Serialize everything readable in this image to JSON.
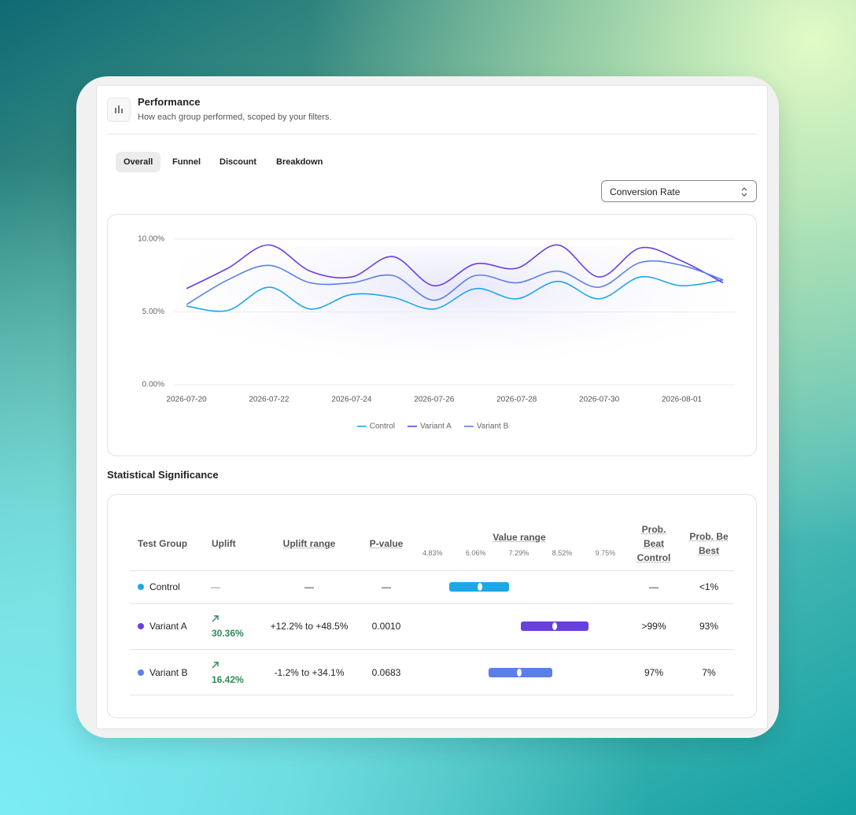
{
  "header": {
    "title": "Performance",
    "subtitle": "How each group performed, scoped by your filters."
  },
  "tabs": [
    "Overall",
    "Funnel",
    "Discount",
    "Breakdown"
  ],
  "active_tab": 0,
  "metric_select": "Conversion Rate",
  "chart_data": {
    "type": "line",
    "x": [
      "2026-07-20",
      "2026-07-21",
      "2026-07-22",
      "2026-07-23",
      "2026-07-24",
      "2026-07-25",
      "2026-07-26",
      "2026-07-27",
      "2026-07-28",
      "2026-07-29",
      "2026-07-30",
      "2026-07-31",
      "2026-08-01",
      "2026-08-02"
    ],
    "series": [
      {
        "name": "Control",
        "color": "#1ea7e8",
        "values": [
          5.4,
          5.1,
          6.7,
          5.2,
          6.2,
          6.0,
          5.2,
          6.6,
          5.9,
          7.1,
          5.9,
          7.4,
          6.8,
          7.2
        ]
      },
      {
        "name": "Variant A",
        "color": "#6a3fe0",
        "values": [
          6.6,
          8.0,
          9.6,
          7.8,
          7.4,
          8.8,
          6.8,
          8.3,
          8.0,
          9.6,
          7.4,
          9.4,
          8.5,
          7.0
        ]
      },
      {
        "name": "Variant B",
        "color": "#5b7fe8",
        "values": [
          5.5,
          7.2,
          8.2,
          7.0,
          7.0,
          7.5,
          5.8,
          7.5,
          7.0,
          7.8,
          6.7,
          8.4,
          8.2,
          7.2
        ]
      }
    ],
    "ylim": [
      0,
      10
    ],
    "yticks": [
      {
        "value": 0,
        "label": "0.00%"
      },
      {
        "value": 5,
        "label": "5.00%"
      },
      {
        "value": 10,
        "label": "10.00%"
      }
    ],
    "grid": true,
    "legend": "bottom"
  },
  "significance": {
    "title": "Statistical Significance",
    "columns": [
      "Test Group",
      "Uplift",
      "Uplift range",
      "P-value",
      "Value range",
      "Prob. Beat Control",
      "Prob. Be Best"
    ],
    "value_range_lim": [
      4.5,
      10.1
    ],
    "value_range_ticks": [
      {
        "value": 4.83,
        "label": "4.83%"
      },
      {
        "value": 6.06,
        "label": "6.06%"
      },
      {
        "value": 7.29,
        "label": "7.29%"
      },
      {
        "value": 8.52,
        "label": "8.52%"
      },
      {
        "value": 9.75,
        "label": "9.75%"
      }
    ],
    "rows": [
      {
        "group": "Control",
        "color": "#1ea7e8",
        "uplift": "—",
        "uplift_direction": "none",
        "uplift_range": "—",
        "p_value": "—",
        "range_low": 5.3,
        "range_high": 7.02,
        "mean": 6.17,
        "prob_beat_control": "—",
        "prob_best": "<1%"
      },
      {
        "group": "Variant A",
        "color": "#6a3fe0",
        "uplift": "30.36%",
        "uplift_direction": "up",
        "uplift_range": "+12.2% to +48.5%",
        "p_value": "0.0010",
        "range_low": 7.35,
        "range_high": 9.27,
        "mean": 8.31,
        "prob_beat_control": ">99%",
        "prob_best": "93%"
      },
      {
        "group": "Variant B",
        "color": "#5b7fe8",
        "uplift": "16.42%",
        "uplift_direction": "up",
        "uplift_range": "-1.2% to +34.1%",
        "p_value": "0.0683",
        "range_low": 6.42,
        "range_high": 8.23,
        "mean": 7.31,
        "prob_beat_control": "97%",
        "prob_best": "7%"
      }
    ]
  }
}
